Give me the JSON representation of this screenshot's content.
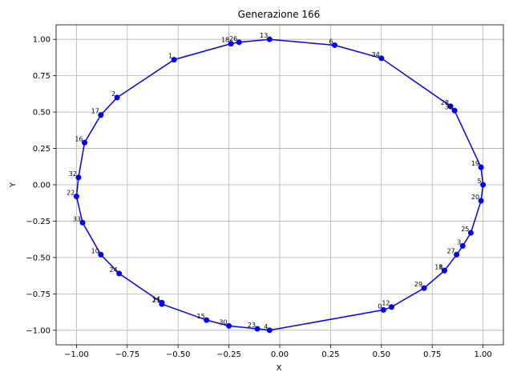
{
  "chart_data": {
    "type": "line",
    "title": "Generazione 166",
    "xlabel": "X",
    "ylabel": "Y",
    "xlim": [
      -1.1,
      1.1
    ],
    "ylim": [
      -1.1,
      1.1
    ],
    "grid": true,
    "xticks": [
      "−1.00",
      "−0.75",
      "−0.50",
      "−0.25",
      "0.00",
      "0.25",
      "0.50",
      "0.75",
      "1.00"
    ],
    "xtick_values": [
      -1.0,
      -0.75,
      -0.5,
      -0.25,
      0.0,
      0.25,
      0.5,
      0.75,
      1.0
    ],
    "yticks": [
      "−1.00",
      "−0.75",
      "−0.50",
      "−0.25",
      "0.00",
      "0.25",
      "0.50",
      "0.75",
      "1.00"
    ],
    "ytick_values": [
      -1.0,
      -0.75,
      -0.5,
      -0.25,
      0.0,
      0.25,
      0.5,
      0.75,
      1.0
    ],
    "color": "#0000ff",
    "points": [
      {
        "label": "0",
        "x": 0.51,
        "y": -0.86
      },
      {
        "label": "12",
        "x": 0.55,
        "y": -0.84
      },
      {
        "label": "29",
        "x": 0.71,
        "y": -0.71
      },
      {
        "label": "11",
        "x": 0.81,
        "y": -0.59
      },
      {
        "label": "8",
        "x": 0.81,
        "y": -0.59
      },
      {
        "label": "27",
        "x": 0.87,
        "y": -0.48
      },
      {
        "label": "3",
        "x": 0.9,
        "y": -0.42
      },
      {
        "label": "25",
        "x": 0.94,
        "y": -0.33
      },
      {
        "label": "20",
        "x": 0.99,
        "y": -0.11
      },
      {
        "label": "5",
        "x": 1.0,
        "y": 0.0
      },
      {
        "label": "19",
        "x": 0.99,
        "y": 0.12
      },
      {
        "label": "31",
        "x": 0.86,
        "y": 0.51
      },
      {
        "label": "28",
        "x": 0.84,
        "y": 0.54
      },
      {
        "label": "34",
        "x": 0.5,
        "y": 0.87
      },
      {
        "label": "6",
        "x": 0.27,
        "y": 0.96
      },
      {
        "label": "13",
        "x": -0.05,
        "y": 1.0
      },
      {
        "label": "26",
        "x": -0.2,
        "y": 0.98
      },
      {
        "label": "18",
        "x": -0.24,
        "y": 0.97
      },
      {
        "label": "1",
        "x": -0.52,
        "y": 0.86
      },
      {
        "label": "2",
        "x": -0.8,
        "y": 0.6
      },
      {
        "label": "17",
        "x": -0.88,
        "y": 0.48
      },
      {
        "label": "16",
        "x": -0.96,
        "y": 0.29
      },
      {
        "label": "32",
        "x": -0.99,
        "y": 0.05
      },
      {
        "label": "22",
        "x": -1.0,
        "y": -0.08
      },
      {
        "label": "33",
        "x": -0.97,
        "y": -0.26
      },
      {
        "label": "10",
        "x": -0.88,
        "y": -0.48
      },
      {
        "label": "24",
        "x": -0.79,
        "y": -0.61
      },
      {
        "label": "14",
        "x": -0.58,
        "y": -0.81
      },
      {
        "label": "21",
        "x": -0.58,
        "y": -0.82
      },
      {
        "label": "15",
        "x": -0.36,
        "y": -0.93
      },
      {
        "label": "30",
        "x": -0.25,
        "y": -0.97
      },
      {
        "label": "23",
        "x": -0.11,
        "y": -0.99
      },
      {
        "label": "4",
        "x": -0.05,
        "y": -1.0
      }
    ]
  }
}
